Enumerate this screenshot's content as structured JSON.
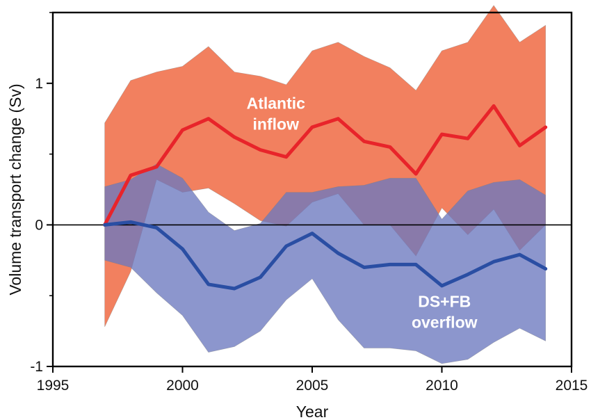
{
  "chart_data": {
    "type": "line",
    "title": "",
    "xlabel": "Year",
    "ylabel": "Volume transport change (Sv)",
    "xlim": [
      1995,
      2015
    ],
    "ylim": [
      -1,
      1.5
    ],
    "xticks": [
      {
        "value": 1995,
        "label": "1995"
      },
      {
        "value": 2000,
        "label": "2000"
      },
      {
        "value": 2005,
        "label": "2005"
      },
      {
        "value": 2010,
        "label": "2010"
      },
      {
        "value": 2015,
        "label": "2015"
      }
    ],
    "yticks": [
      {
        "value": -1,
        "label": "-1"
      },
      {
        "value": 0,
        "label": "0"
      },
      {
        "value": 1,
        "label": "1"
      }
    ],
    "zero_line": true,
    "grid": false,
    "legend": "none",
    "x": [
      1997,
      1998,
      1999,
      2000,
      2001,
      2002,
      2003,
      2004,
      2005,
      2006,
      2007,
      2008,
      2009,
      2010,
      2011,
      2012,
      2013,
      2014
    ],
    "series": [
      {
        "key": "atlantic",
        "color": "#e8242a",
        "band_color": "#f2805f",
        "values": [
          0.0,
          0.35,
          0.41,
          0.67,
          0.75,
          0.62,
          0.53,
          0.48,
          0.69,
          0.75,
          0.59,
          0.55,
          0.36,
          0.64,
          0.61,
          0.84,
          0.56,
          0.69
        ],
        "upper": [
          0.72,
          1.02,
          1.08,
          1.12,
          1.26,
          1.08,
          1.05,
          0.99,
          1.23,
          1.29,
          1.19,
          1.11,
          0.95,
          1.23,
          1.29,
          1.55,
          1.29,
          1.41
        ],
        "lower": [
          -0.72,
          -0.33,
          0.32,
          0.23,
          0.26,
          0.15,
          0.03,
          -0.01,
          0.16,
          0.22,
          0.0,
          0.0,
          -0.22,
          0.12,
          -0.07,
          0.11,
          -0.18,
          0.0
        ]
      },
      {
        "key": "overflow",
        "color": "#2a4ea3",
        "band_color": "#6b78bf",
        "values": [
          0.0,
          0.02,
          -0.02,
          -0.17,
          -0.42,
          -0.45,
          -0.37,
          -0.15,
          -0.06,
          -0.2,
          -0.3,
          -0.28,
          -0.28,
          -0.43,
          -0.35,
          -0.26,
          -0.21,
          -0.31
        ],
        "upper": [
          0.27,
          0.32,
          0.43,
          0.33,
          0.09,
          -0.04,
          0.01,
          0.23,
          0.23,
          0.27,
          0.28,
          0.33,
          0.33,
          0.04,
          0.24,
          0.3,
          0.32,
          0.21
        ],
        "lower": [
          -0.25,
          -0.3,
          -0.48,
          -0.64,
          -0.9,
          -0.86,
          -0.75,
          -0.53,
          -0.38,
          -0.67,
          -0.87,
          -0.87,
          -0.89,
          -0.98,
          -0.95,
          -0.83,
          -0.73,
          -0.82
        ]
      }
    ],
    "annotations": [
      {
        "key": "atlantic",
        "lines": [
          "Atlantic",
          "inflow"
        ],
        "x": 2003.6,
        "y": 0.82,
        "color": "#ffffff"
      },
      {
        "key": "overflow",
        "lines": [
          "DS+FB",
          "overflow"
        ],
        "x": 2010.1,
        "y": -0.58,
        "color": "#ffffff"
      }
    ]
  }
}
